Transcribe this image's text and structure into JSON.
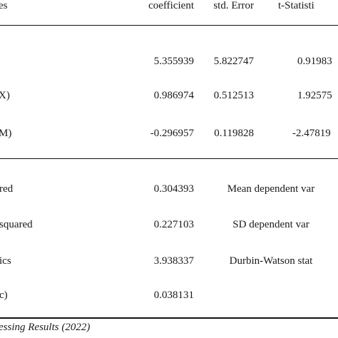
{
  "header": {
    "col_variables": "es",
    "col_coefficient": "coefficient",
    "col_std_error": "std. Error",
    "col_t_statistic": "t-Statisti"
  },
  "coefficients": [
    {
      "variable": "",
      "coefficient": "5.355939",
      "std_error": "5.822747",
      "t_statistic": "0.91983"
    },
    {
      "variable": "X)",
      "coefficient": "0.986974",
      "std_error": "0.512513",
      "t_statistic": "1.92575"
    },
    {
      "variable": "M)",
      "coefficient": "-0.296957",
      "std_error": "0.119828",
      "t_statistic": "-2.47819"
    }
  ],
  "statistics": [
    {
      "label": "red",
      "value": "0.304393",
      "right_label": "Mean dependent var"
    },
    {
      "label": "squared",
      "value": "0.227103",
      "right_label": "SD dependent var"
    },
    {
      "label": "ics",
      "value": "3.938337",
      "right_label": "Durbin-Watson stat"
    },
    {
      "label": "c)",
      "value": "0.038131",
      "right_label": ""
    }
  ],
  "caption": "essing Results (2022)"
}
